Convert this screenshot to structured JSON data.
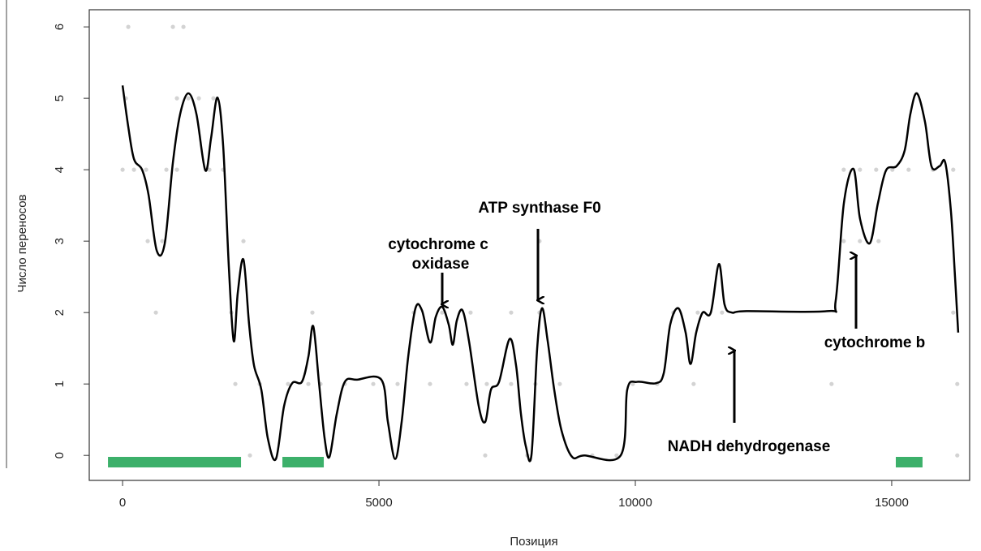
{
  "chart_data": {
    "type": "line",
    "xlabel": "Позиция",
    "ylabel": "Число переносов",
    "xlim": [
      -650,
      16520
    ],
    "ylim": [
      -0.35,
      6.24
    ],
    "xticks": [
      0,
      5000,
      10000,
      15000
    ],
    "yticks": [
      0,
      1,
      2,
      3,
      4,
      5,
      6
    ],
    "line": {
      "color": "#000000",
      "x": [
        0,
        111,
        222,
        380,
        506,
        665,
        823,
        981,
        1123,
        1282,
        1440,
        1614,
        1725,
        1851,
        1962,
        2073,
        2168,
        2247,
        2358,
        2468,
        2563,
        2706,
        2832,
        2991,
        3149,
        3307,
        3497,
        3623,
        3718,
        3829,
        3940,
        4035,
        4177,
        4335,
        4573,
        5047,
        5174,
        5316,
        5443,
        5570,
        5712,
        5839,
        5997,
        6108,
        6234,
        6361,
        6440,
        6519,
        6630,
        6756,
        6946,
        7073,
        7184,
        7342,
        7547,
        7674,
        7769,
        7864,
        7975,
        8085,
        8180,
        8291,
        8418,
        8560,
        8766,
        9003,
        9715,
        9842,
        10032,
        10396,
        10554,
        10680,
        10839,
        10981,
        11076,
        11187,
        11313,
        11472,
        11630,
        11741,
        11883,
        12168,
        13750,
        13908,
        14067,
        14256,
        14383,
        14573,
        14731,
        14889,
        15095,
        15253,
        15364,
        15491,
        15649,
        15775,
        15934,
        16044,
        16155,
        16234,
        16297
      ],
      "y": [
        5.18,
        4.6,
        4.15,
        4.0,
        3.65,
        2.87,
        2.97,
        4.1,
        4.78,
        5.07,
        4.78,
        3.99,
        4.44,
        5.01,
        4.33,
        2.63,
        1.6,
        2.28,
        2.74,
        1.83,
        1.26,
        0.92,
        0.24,
        -0.05,
        0.69,
        1.01,
        1.03,
        1.38,
        1.81,
        1.03,
        0.24,
        -0.02,
        0.58,
        1.03,
        1.06,
        1.06,
        0.47,
        -0.05,
        0.47,
        1.38,
        2.06,
        2.03,
        1.58,
        1.94,
        2.08,
        1.83,
        1.55,
        1.89,
        2.03,
        1.6,
        0.69,
        0.47,
        0.92,
        1.03,
        1.63,
        1.26,
        0.58,
        0.13,
        0.01,
        1.49,
        2.06,
        1.6,
        0.92,
        0.35,
        -0.02,
        0,
        0,
        0.92,
        1.03,
        1.01,
        1.15,
        1.83,
        2.06,
        1.72,
        1.28,
        1.72,
        2.0,
        2.0,
        2.68,
        2.11,
        2.0,
        2.02,
        2.02,
        2.17,
        3.53,
        4.01,
        3.31,
        2.97,
        3.53,
        3.99,
        4.05,
        4.27,
        4.78,
        5.07,
        4.67,
        4.05,
        4.05,
        4.1,
        3.42,
        2.51,
        1.72
      ]
    },
    "points": {
      "color": "#d3d3d3",
      "x": [
        111,
        981,
        1187,
        63,
        1060,
        1282,
        1487,
        1772,
        0,
        222,
        459,
        854,
        1060,
        1693,
        1962,
        14064,
        14380,
        14697,
        15013,
        15330,
        15804,
        16200,
        490,
        775,
        2357,
        8131,
        14064,
        14380,
        14744,
        649,
        2120,
        3702,
        5679,
        6233,
        6787,
        7578,
        8131,
        10742,
        11217,
        11691,
        16200,
        2199,
        2674,
        3227,
        3623,
        3860,
        4335,
        4889,
        5363,
        5996,
        6708,
        7103,
        7578,
        8052,
        8527,
        9951,
        10426,
        11137,
        13827,
        16279,
        2484,
        7072,
        7894,
        9160,
        9634,
        16279
      ],
      "y": [
        6,
        6,
        6,
        5,
        5,
        5,
        5,
        5,
        4,
        4,
        4,
        4,
        4,
        4,
        4,
        4,
        4,
        4,
        4,
        4,
        4,
        4,
        3,
        3,
        3,
        3,
        3,
        3,
        3,
        2,
        2,
        2,
        2,
        2,
        2,
        2,
        2,
        2,
        2,
        2,
        2,
        1,
        1,
        1,
        1,
        1,
        1,
        1,
        1,
        1,
        1,
        1,
        1,
        1,
        1,
        1,
        1,
        1,
        1,
        1,
        0,
        0,
        0,
        0,
        0,
        0
      ]
    },
    "regions": {
      "color": "#3cb06a",
      "ranges": [
        [
          -285,
          2310
        ],
        [
          3117,
          3924
        ],
        [
          15080,
          15601
        ]
      ]
    },
    "annotations": [
      "cytochrome c",
      "oxidase",
      "ATP synthase F0",
      "NADH dehydrogenase",
      "cytochrome b"
    ]
  }
}
